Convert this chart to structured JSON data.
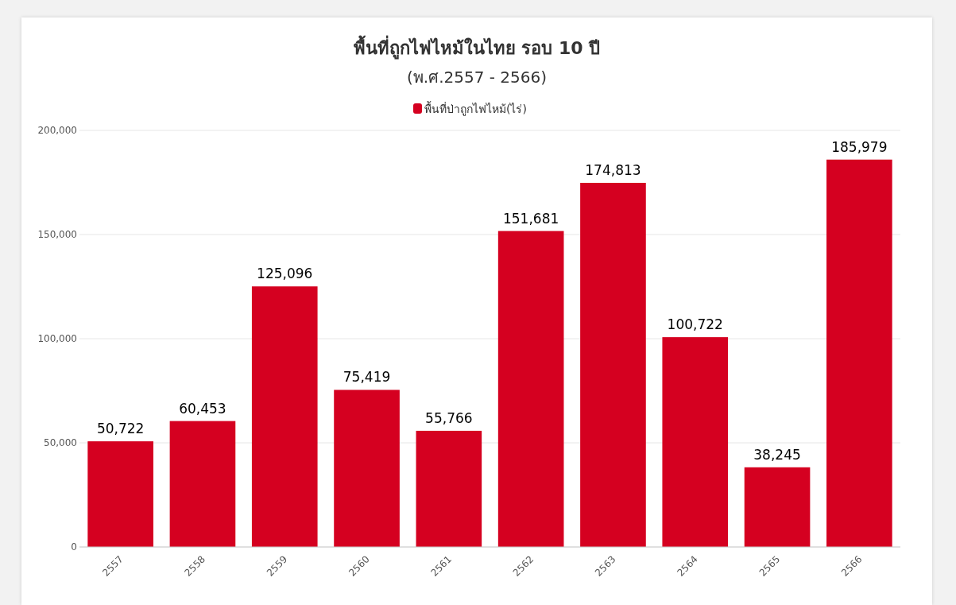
{
  "chart_data": {
    "type": "bar",
    "title": "พื้นที่ถูกไฟไหม้ในไทย รอบ 10 ปี",
    "subtitle": "(พ.ศ.2557 - 2566)",
    "categories": [
      "2557",
      "2558",
      "2559",
      "2560",
      "2561",
      "2562",
      "2563",
      "2564",
      "2565",
      "2566"
    ],
    "series": [
      {
        "name": "พื้นที่ป่าถูกไฟไหม้(ไร่)",
        "color": "#d50020",
        "values": [
          50722,
          60453,
          125096,
          75419,
          55766,
          151681,
          174813,
          100722,
          38245,
          185979
        ],
        "value_labels": [
          "50,722",
          "60,453",
          "125,096",
          "75,419",
          "55,766",
          "151,681",
          "174,813",
          "100,722",
          "38,245",
          "185,979"
        ]
      }
    ],
    "ylim": [
      0,
      200000
    ],
    "yticks": [
      {
        "value": 0,
        "label": "0"
      },
      {
        "value": 50000,
        "label": "50,000"
      },
      {
        "value": 100000,
        "label": "100,000"
      },
      {
        "value": 150000,
        "label": "150,000"
      },
      {
        "value": 200000,
        "label": "200,000"
      }
    ],
    "grid": "y",
    "legend": "top"
  }
}
